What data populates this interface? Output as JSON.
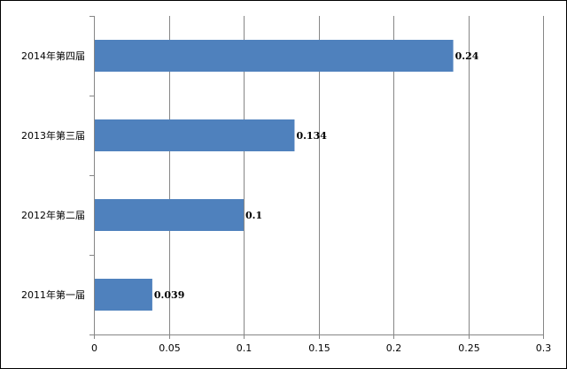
{
  "chart_data": {
    "type": "bar",
    "orientation": "horizontal",
    "title": "",
    "xlabel": "",
    "ylabel": "",
    "categories": [
      "2014年第四届",
      "2013年第三届",
      "2012年第二届",
      "2011年第一届"
    ],
    "values": [
      0.24,
      0.134,
      0.1,
      0.039
    ],
    "data_labels": [
      "0.24",
      "0.134",
      "0.1",
      "0.039"
    ],
    "xlim": [
      0,
      0.3
    ],
    "xticks": [
      0,
      0.05,
      0.1,
      0.15,
      0.2,
      0.25,
      0.3
    ],
    "xtick_labels": [
      "0",
      "0.05",
      "0.1",
      "0.15",
      "0.2",
      "0.25",
      "0.3"
    ],
    "grid": "vertical",
    "legend": "none",
    "bar_color": "#4F81BD",
    "grid_color": "#868686"
  }
}
